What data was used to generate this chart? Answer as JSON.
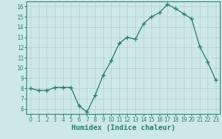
{
  "x": [
    0,
    1,
    2,
    3,
    4,
    5,
    6,
    7,
    8,
    9,
    10,
    11,
    12,
    13,
    14,
    15,
    16,
    17,
    18,
    19,
    20,
    21,
    22,
    23
  ],
  "y": [
    8.0,
    7.8,
    7.8,
    8.1,
    8.1,
    8.1,
    6.3,
    5.7,
    7.3,
    9.3,
    10.7,
    12.4,
    13.0,
    12.8,
    14.3,
    15.0,
    15.4,
    16.2,
    15.8,
    15.3,
    14.8,
    12.1,
    10.6,
    8.8
  ],
  "line_color": "#2e7d6e",
  "marker": "+",
  "marker_size": 4,
  "line_width": 1.0,
  "bg_color": "#cde8e8",
  "grid_color": "#b0cccc",
  "xlabel": "Humidex (Indice chaleur)",
  "xlim": [
    -0.5,
    23.5
  ],
  "ylim": [
    5.5,
    16.5
  ],
  "yticks": [
    6,
    7,
    8,
    9,
    10,
    11,
    12,
    13,
    14,
    15,
    16
  ],
  "xticks": [
    0,
    1,
    2,
    3,
    4,
    5,
    6,
    7,
    8,
    9,
    10,
    11,
    12,
    13,
    14,
    15,
    16,
    17,
    18,
    19,
    20,
    21,
    22,
    23
  ],
  "tick_fontsize": 5.5,
  "xlabel_fontsize": 7.5,
  "tick_color": "#2e7d6e",
  "spine_color": "#2e7d6e"
}
